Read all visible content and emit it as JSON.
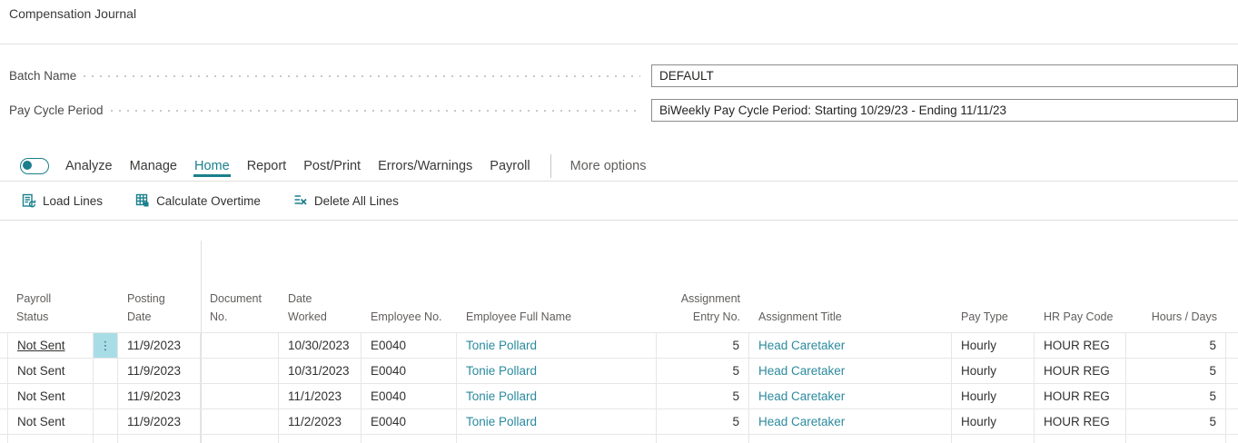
{
  "page": {
    "title": "Compensation Journal"
  },
  "fields": {
    "batch_name": {
      "label": "Batch Name",
      "value": "DEFAULT"
    },
    "pay_cycle_period": {
      "label": "Pay Cycle Period",
      "value": "BiWeekly Pay Cycle Period: Starting 10/29/23 - Ending 11/11/23"
    }
  },
  "menubar": {
    "analyze_label": "Analyze",
    "items": [
      {
        "label": "Manage",
        "active": false
      },
      {
        "label": "Home",
        "active": true
      },
      {
        "label": "Report",
        "active": false
      },
      {
        "label": "Post/Print",
        "active": false
      },
      {
        "label": "Errors/Warnings",
        "active": false
      },
      {
        "label": "Payroll",
        "active": false
      }
    ],
    "more_options_label": "More options"
  },
  "actions": [
    {
      "label": "Load Lines",
      "icon": "load-lines-icon"
    },
    {
      "label": "Calculate Overtime",
      "icon": "calculate-overtime-icon"
    },
    {
      "label": "Delete All Lines",
      "icon": "delete-all-lines-icon"
    }
  ],
  "table": {
    "row_menu_glyph": "⋮",
    "columns": [
      {
        "key": "payroll_status",
        "label": "Payroll Status"
      },
      {
        "key": "posting_date",
        "label": "Posting Date"
      },
      {
        "key": "document_no",
        "label": "Document No."
      },
      {
        "key": "date_worked",
        "label": "Date Worked"
      },
      {
        "key": "employee_no",
        "label": "Employee No."
      },
      {
        "key": "employee_full_name",
        "label": "Employee Full Name"
      },
      {
        "key": "assignment_entry_no",
        "label": "Assignment Entry No."
      },
      {
        "key": "assignment_title",
        "label": "Assignment Title"
      },
      {
        "key": "pay_type",
        "label": "Pay Type"
      },
      {
        "key": "hr_pay_code",
        "label": "HR Pay Code"
      },
      {
        "key": "hours_days",
        "label": "Hours / Days"
      }
    ],
    "rows": [
      {
        "focused": true,
        "payroll_status": "Not Sent",
        "posting_date": "11/9/2023",
        "document_no": "",
        "date_worked": "10/30/2023",
        "employee_no": "E0040",
        "employee_full_name": "Tonie Pollard",
        "assignment_entry_no": "5",
        "assignment_title": "Head Caretaker",
        "pay_type": "Hourly",
        "hr_pay_code": "HOUR REG",
        "hours_days": "5"
      },
      {
        "focused": false,
        "payroll_status": "Not Sent",
        "posting_date": "11/9/2023",
        "document_no": "",
        "date_worked": "10/31/2023",
        "employee_no": "E0040",
        "employee_full_name": "Tonie Pollard",
        "assignment_entry_no": "5",
        "assignment_title": "Head Caretaker",
        "pay_type": "Hourly",
        "hr_pay_code": "HOUR REG",
        "hours_days": "5"
      },
      {
        "focused": false,
        "payroll_status": "Not Sent",
        "posting_date": "11/9/2023",
        "document_no": "",
        "date_worked": "11/1/2023",
        "employee_no": "E0040",
        "employee_full_name": "Tonie Pollard",
        "assignment_entry_no": "5",
        "assignment_title": "Head Caretaker",
        "pay_type": "Hourly",
        "hr_pay_code": "HOUR REG",
        "hours_days": "5"
      },
      {
        "focused": false,
        "payroll_status": "Not Sent",
        "posting_date": "11/9/2023",
        "document_no": "",
        "date_worked": "11/2/2023",
        "employee_no": "E0040",
        "employee_full_name": "Tonie Pollard",
        "assignment_entry_no": "5",
        "assignment_title": "Head Caretaker",
        "pay_type": "Hourly",
        "hr_pay_code": "HOUR REG",
        "hours_days": "5"
      }
    ]
  },
  "colors": {
    "accent": "#1a7f8c",
    "link": "#2b8a9e",
    "row_menu_bg": "#a9dde6"
  }
}
